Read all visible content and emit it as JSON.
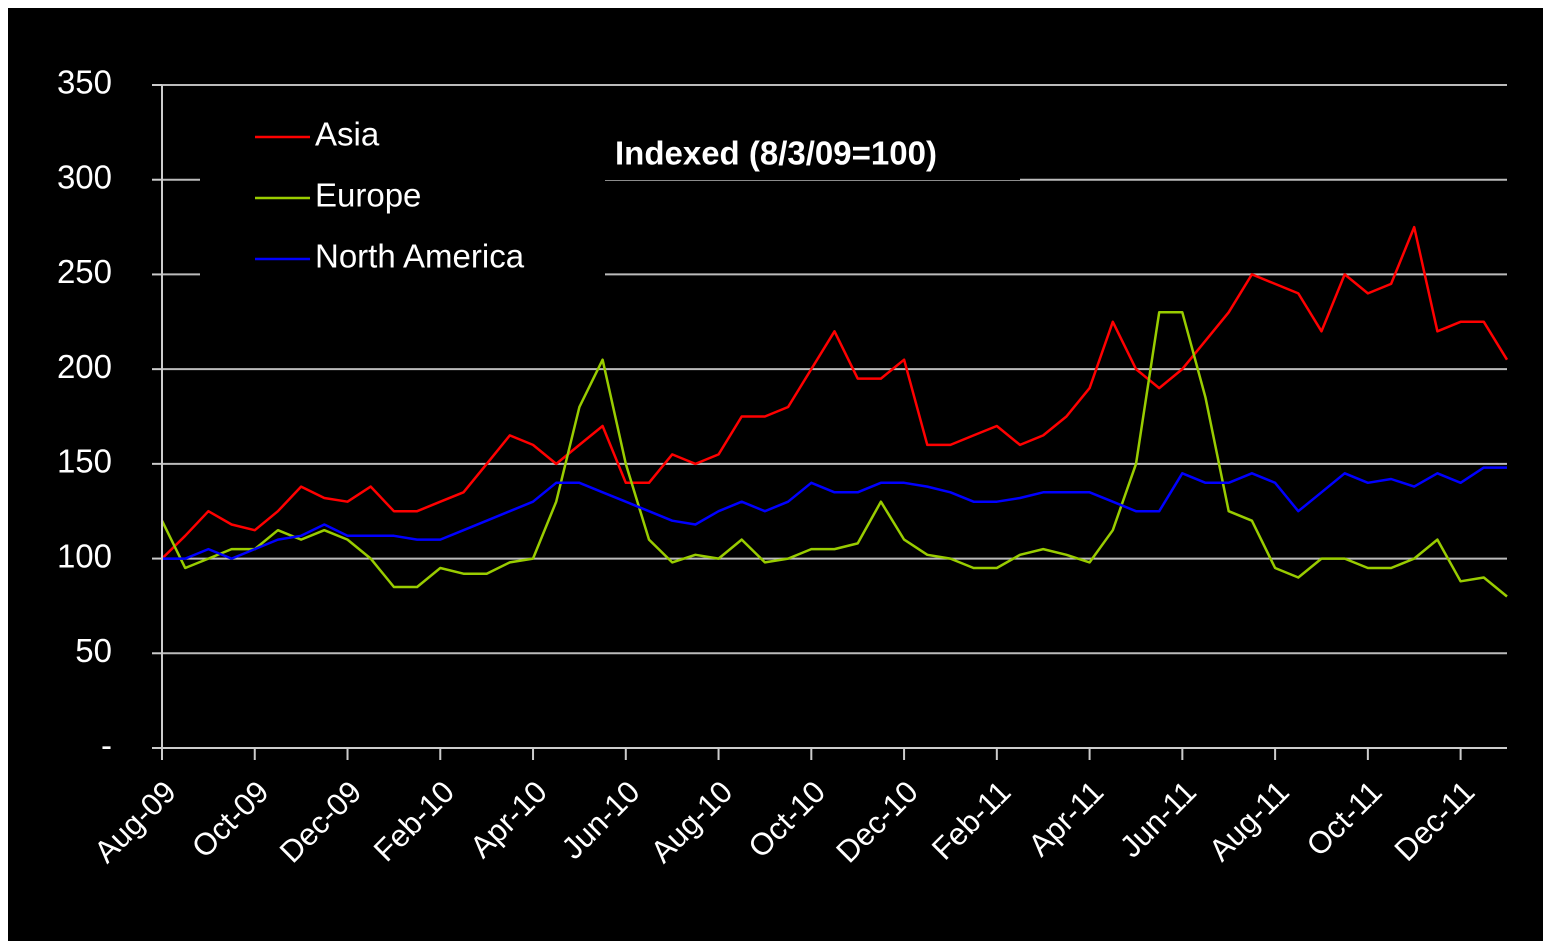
{
  "chart_data": {
    "type": "line",
    "title": "Indexed (8/3/09=100)",
    "categories": [
      "Aug-09",
      null,
      null,
      null,
      "Oct-09",
      null,
      null,
      null,
      "Dec-09",
      null,
      null,
      null,
      "Feb-10",
      null,
      null,
      null,
      "Apr-10",
      null,
      null,
      null,
      "Jun-10",
      null,
      null,
      null,
      "Aug-10",
      null,
      null,
      null,
      "Oct-10",
      null,
      null,
      null,
      "Dec-10",
      null,
      null,
      null,
      "Feb-11",
      null,
      null,
      null,
      "Apr-11",
      null,
      null,
      null,
      "Jun-11",
      null,
      null,
      null,
      "Aug-11",
      null,
      null,
      null,
      "Oct-11",
      null,
      null,
      null,
      "Dec-11",
      null,
      null
    ],
    "series": [
      {
        "name": "Asia",
        "color": "#ff0000",
        "values": [
          100,
          112,
          125,
          118,
          115,
          125,
          138,
          132,
          130,
          138,
          125,
          125,
          130,
          135,
          150,
          165,
          160,
          150,
          160,
          170,
          140,
          140,
          155,
          150,
          155,
          175,
          175,
          180,
          200,
          220,
          195,
          195,
          205,
          160,
          160,
          165,
          170,
          160,
          165,
          175,
          190,
          225,
          200,
          190,
          200,
          215,
          230,
          250,
          245,
          240,
          220,
          250,
          240,
          245,
          275,
          220,
          225,
          225,
          205
        ]
      },
      {
        "name": "Europe",
        "color": "#99cc00",
        "values": [
          120,
          95,
          100,
          105,
          105,
          115,
          110,
          115,
          110,
          100,
          85,
          85,
          95,
          92,
          92,
          98,
          100,
          130,
          180,
          205,
          150,
          110,
          98,
          102,
          100,
          110,
          98,
          100,
          105,
          105,
          108,
          130,
          110,
          102,
          100,
          95,
          95,
          102,
          105,
          102,
          98,
          115,
          150,
          230,
          230,
          185,
          125,
          120,
          95,
          90,
          100,
          100,
          95,
          95,
          100,
          110,
          88,
          90,
          80
        ]
      },
      {
        "name": "North America",
        "color": "#0000ff",
        "values": [
          100,
          100,
          105,
          100,
          105,
          110,
          112,
          118,
          112,
          112,
          112,
          110,
          110,
          115,
          120,
          125,
          130,
          140,
          140,
          135,
          130,
          125,
          120,
          118,
          125,
          130,
          125,
          130,
          140,
          135,
          135,
          140,
          140,
          138,
          135,
          130,
          130,
          132,
          135,
          135,
          135,
          130,
          125,
          125,
          145,
          140,
          140,
          145,
          140,
          125,
          135,
          145,
          140,
          142,
          138,
          145,
          140,
          148,
          148
        ]
      }
    ],
    "ylim": [
      0,
      350
    ],
    "yticks": [
      {
        "value": 0,
        "label": "-"
      },
      50,
      100,
      150,
      200,
      250,
      300,
      350
    ],
    "grid": true,
    "legend": "upper left"
  }
}
